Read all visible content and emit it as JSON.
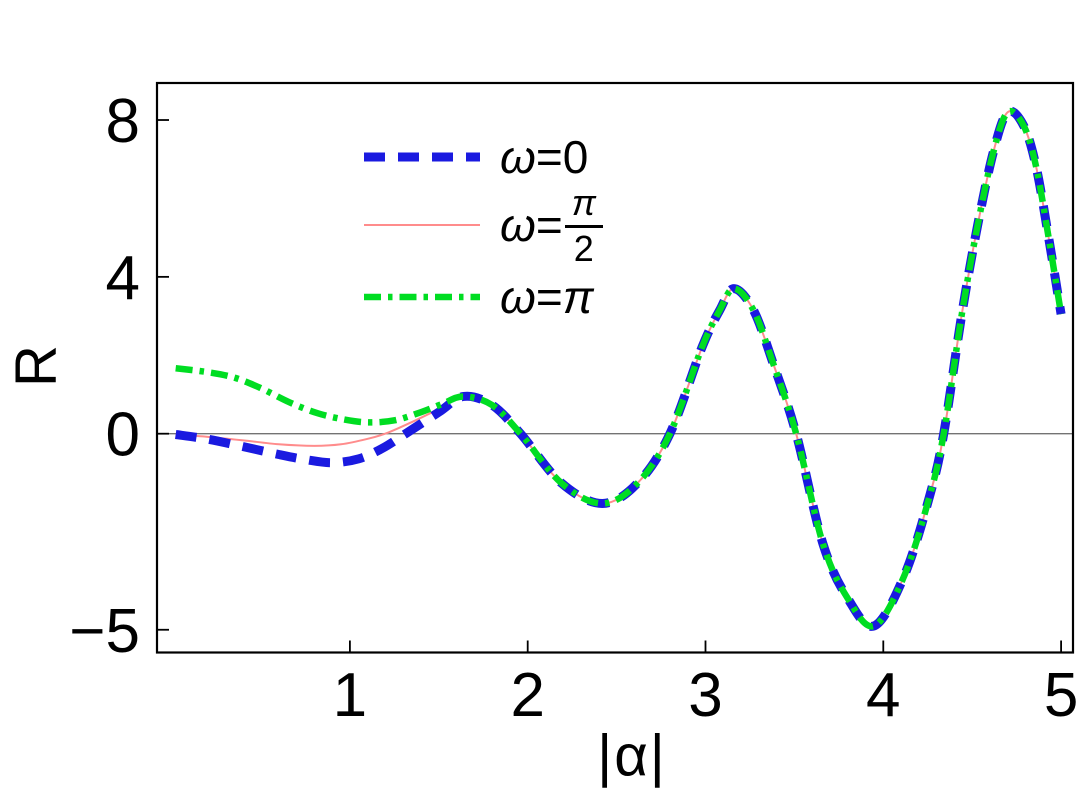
{
  "chart_data": {
    "type": "line",
    "title": "",
    "xlabel": "|α|",
    "ylabel": "R",
    "xlim": [
      -0.085,
      5.067
    ],
    "ylim": [
      -5.58,
      8.944
    ],
    "grid": false,
    "frame": true,
    "frame_color": "#000000",
    "background": "#ffffff",
    "legend_position": "top-left-inside",
    "zero_line": {
      "y": 0,
      "color": "#737373"
    },
    "x_ticks": [
      {
        "value": 1,
        "label": "1"
      },
      {
        "value": 2,
        "label": "2"
      },
      {
        "value": 3,
        "label": "3"
      },
      {
        "value": 4,
        "label": "4"
      },
      {
        "value": 5,
        "label": "5"
      }
    ],
    "y_ticks": [
      {
        "value": 8,
        "label": "8"
      },
      {
        "value": 4,
        "label": "4"
      },
      {
        "value": 0,
        "label": "0"
      },
      {
        "value": -5,
        "label": "−5"
      }
    ],
    "legend_rows": [
      {
        "omega": "ω",
        "eq": "=",
        "value": "0"
      },
      {
        "omega": "ω",
        "eq": "=",
        "numerator": "π",
        "denominator": "2"
      },
      {
        "omega": "ω",
        "eq": "=",
        "value": "π"
      }
    ],
    "series": [
      {
        "id": "omega-0",
        "name": "ω=0",
        "color": "#1a1ae0",
        "style": "dashed",
        "stroke_width": 9,
        "dash": "21 13",
        "points": [
          [
            0.02,
            -0.02
          ],
          [
            0.2,
            -0.14
          ],
          [
            0.4,
            -0.33
          ],
          [
            0.6,
            -0.53
          ],
          [
            0.75,
            -0.66
          ],
          [
            0.9,
            -0.74
          ],
          [
            1.05,
            -0.64
          ],
          [
            1.18,
            -0.38
          ],
          [
            1.32,
            0.02
          ],
          [
            1.5,
            0.55
          ],
          [
            1.64,
            0.95
          ],
          [
            1.8,
            0.73
          ],
          [
            1.96,
            0
          ],
          [
            2.19,
            -1.26
          ],
          [
            2.42,
            -1.78
          ],
          [
            2.62,
            -1.25
          ],
          [
            2.8,
            0
          ],
          [
            2.98,
            2.2
          ],
          [
            3.08,
            3.15
          ],
          [
            3.16,
            3.7
          ],
          [
            3.27,
            3.15
          ],
          [
            3.38,
            1.8
          ],
          [
            3.51,
            0
          ],
          [
            3.66,
            -2.8
          ],
          [
            3.8,
            -4.2
          ],
          [
            3.95,
            -4.9
          ],
          [
            4.12,
            -3.6
          ],
          [
            4.26,
            -1.6
          ],
          [
            4.34,
            0
          ],
          [
            4.44,
            3.0
          ],
          [
            4.53,
            5.3
          ],
          [
            4.62,
            7.2
          ],
          [
            4.7,
            8.2
          ],
          [
            4.79,
            7.85
          ],
          [
            4.86,
            6.8
          ],
          [
            4.93,
            5.0
          ],
          [
            5.0,
            3.05
          ]
        ]
      },
      {
        "id": "omega-pi-over-2",
        "name": "ω=π/2",
        "color": "#ff8c8c",
        "style": "solid",
        "stroke_width": 2,
        "dash": "",
        "points": [
          [
            0.02,
            -0.02
          ],
          [
            0.2,
            -0.08
          ],
          [
            0.4,
            -0.17
          ],
          [
            0.6,
            -0.27
          ],
          [
            0.8,
            -0.31
          ],
          [
            0.95,
            -0.27
          ],
          [
            1.1,
            -0.13
          ],
          [
            1.21,
            0.02
          ],
          [
            1.35,
            0.3
          ],
          [
            1.5,
            0.63
          ],
          [
            1.64,
            0.95
          ],
          [
            1.8,
            0.73
          ],
          [
            1.96,
            0
          ],
          [
            2.19,
            -1.26
          ],
          [
            2.42,
            -1.78
          ],
          [
            2.62,
            -1.25
          ],
          [
            2.8,
            0
          ],
          [
            2.98,
            2.2
          ],
          [
            3.08,
            3.15
          ],
          [
            3.16,
            3.7
          ],
          [
            3.27,
            3.15
          ],
          [
            3.38,
            1.8
          ],
          [
            3.51,
            0
          ],
          [
            3.66,
            -2.8
          ],
          [
            3.8,
            -4.2
          ],
          [
            3.95,
            -4.9
          ],
          [
            4.12,
            -3.6
          ],
          [
            4.26,
            -1.6
          ],
          [
            4.34,
            0
          ],
          [
            4.44,
            3.0
          ],
          [
            4.53,
            5.3
          ],
          [
            4.62,
            7.2
          ],
          [
            4.7,
            8.2
          ],
          [
            4.79,
            7.85
          ],
          [
            4.86,
            6.8
          ],
          [
            4.93,
            5.0
          ],
          [
            5.0,
            3.05
          ]
        ]
      },
      {
        "id": "omega-pi",
        "name": "ω=π",
        "color": "#00dd22",
        "style": "dash-dot",
        "stroke_width": 6.5,
        "dash": "17 7 4.5 7",
        "points": [
          [
            0.02,
            1.67
          ],
          [
            0.2,
            1.57
          ],
          [
            0.35,
            1.43
          ],
          [
            0.5,
            1.16
          ],
          [
            0.66,
            0.8
          ],
          [
            0.82,
            0.52
          ],
          [
            0.97,
            0.36
          ],
          [
            1.1,
            0.29
          ],
          [
            1.25,
            0.34
          ],
          [
            1.4,
            0.55
          ],
          [
            1.52,
            0.76
          ],
          [
            1.64,
            0.95
          ],
          [
            1.8,
            0.73
          ],
          [
            1.96,
            0
          ],
          [
            2.19,
            -1.26
          ],
          [
            2.42,
            -1.78
          ],
          [
            2.62,
            -1.25
          ],
          [
            2.8,
            0
          ],
          [
            2.98,
            2.2
          ],
          [
            3.08,
            3.15
          ],
          [
            3.16,
            3.7
          ],
          [
            3.27,
            3.15
          ],
          [
            3.38,
            1.8
          ],
          [
            3.51,
            0
          ],
          [
            3.66,
            -2.8
          ],
          [
            3.8,
            -4.2
          ],
          [
            3.95,
            -4.9
          ],
          [
            4.12,
            -3.6
          ],
          [
            4.26,
            -1.6
          ],
          [
            4.34,
            0
          ],
          [
            4.44,
            3.0
          ],
          [
            4.53,
            5.3
          ],
          [
            4.62,
            7.2
          ],
          [
            4.7,
            8.2
          ],
          [
            4.79,
            7.85
          ],
          [
            4.86,
            6.8
          ],
          [
            4.93,
            5.0
          ],
          [
            5.0,
            3.05
          ]
        ]
      }
    ]
  }
}
